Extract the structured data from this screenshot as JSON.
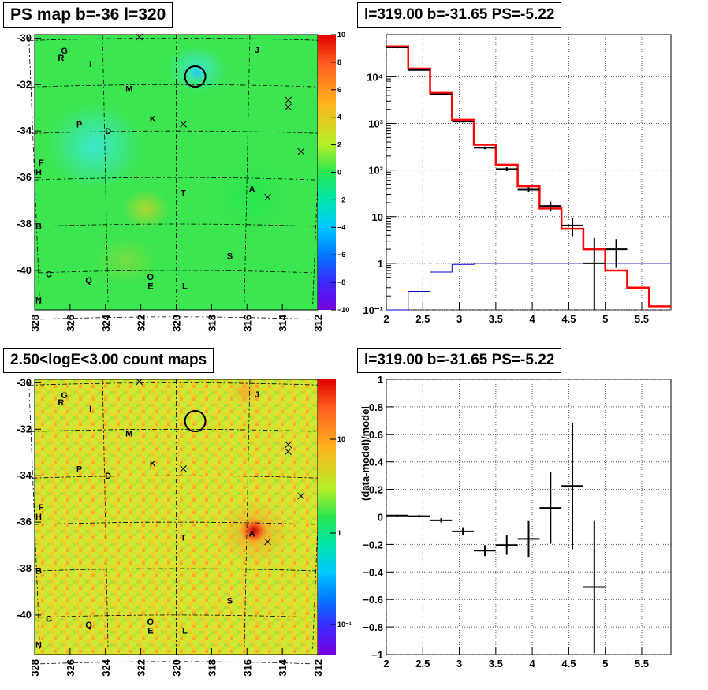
{
  "titles": {
    "map_top": "PS map b=-36 l=320",
    "spec_top": "l=319.00 b=-31.65 PS=-5.22",
    "map_bottom": "2.50<logE<3.00 count maps",
    "spec_bottom": "l=319.00 b=-31.65 PS=-5.22"
  },
  "maps": {
    "xticks": [
      "328",
      "326",
      "324",
      "322",
      "320",
      "318",
      "316",
      "314",
      "312"
    ],
    "yticks": [
      "-30",
      "-32",
      "-34",
      "-36",
      "-38",
      "-40"
    ],
    "labels": [
      {
        "t": "G",
        "l": 326.1,
        "b": -30.6
      },
      {
        "t": "R",
        "l": 326.3,
        "b": -30.9
      },
      {
        "t": "I",
        "l": 324.7,
        "b": -31.2
      },
      {
        "t": "J",
        "l": 315.6,
        "b": -30.6
      },
      {
        "t": "M",
        "l": 322.6,
        "b": -32.3
      },
      {
        "t": "K",
        "l": 321.3,
        "b": -33.6
      },
      {
        "t": "P",
        "l": 325.4,
        "b": -33.8
      },
      {
        "t": "D",
        "l": 323.8,
        "b": -34.1
      },
      {
        "t": "F",
        "l": 327.6,
        "b": -35.4
      },
      {
        "t": "H",
        "l": 328.0,
        "b": -35.8
      },
      {
        "t": "T",
        "l": 319.6,
        "b": -36.8
      },
      {
        "t": "A",
        "l": 315.7,
        "b": -36.6
      },
      {
        "t": "B",
        "l": 328.5,
        "b": -38.1
      },
      {
        "t": "S",
        "l": 316.9,
        "b": -39.5
      },
      {
        "t": "C",
        "l": 327.4,
        "b": -40.2
      },
      {
        "t": "Q",
        "l": 325.1,
        "b": -40.5
      },
      {
        "t": "O",
        "l": 321.5,
        "b": -40.4
      },
      {
        "t": "E",
        "l": 321.5,
        "b": -40.8
      },
      {
        "t": "L",
        "l": 319.5,
        "b": -40.8
      },
      {
        "t": "N",
        "l": 328.6,
        "b": -41.3
      }
    ],
    "crosses": [
      {
        "l": 322.0,
        "b": -29.9
      },
      {
        "l": 319.6,
        "b": -33.7
      },
      {
        "l": 313.8,
        "b": -32.6
      },
      {
        "l": 313.8,
        "b": -32.9
      },
      {
        "l": 313.0,
        "b": -34.8
      },
      {
        "l": 314.8,
        "b": -36.8
      }
    ],
    "circle": {
      "l": 319.0,
      "b": -31.65
    },
    "ps_colorbar_ticks": [
      "10",
      "8",
      "6",
      "4",
      "2",
      "0",
      "−2",
      "−4",
      "−6",
      "−8",
      "−10"
    ],
    "count_colorbar_ticks": [
      "10",
      "1",
      "10⁻¹"
    ]
  },
  "chart_data": [
    {
      "type": "line",
      "title": "l=319.00 b=-31.65 PS=-5.22",
      "xlabel": "",
      "ylabel": "",
      "xlim": [
        2,
        5.9
      ],
      "ylim": [
        0.1,
        80000
      ],
      "yscale": "log",
      "grid": true,
      "xticks": [
        "2",
        "2.5",
        "3",
        "3.5",
        "4",
        "4.5",
        "5",
        "5.5"
      ],
      "yticks": [
        "10⁻¹",
        "1",
        "10",
        "10²",
        "10³",
        "10⁴"
      ],
      "bin_edges": [
        2.0,
        2.3,
        2.6,
        2.9,
        3.2,
        3.5,
        3.8,
        4.1,
        4.4,
        4.7,
        5.0,
        5.3,
        5.6,
        5.9
      ],
      "series": [
        {
          "color": "#ff0000",
          "values": [
            45000,
            15000,
            4500,
            1200,
            350,
            130,
            45,
            15,
            5.5,
            2.0,
            0.7,
            0.3,
            0.12
          ]
        },
        {
          "color": "#000000",
          "values": [
            43000,
            14000,
            4200,
            1100,
            300,
            105,
            38,
            17,
            6.5,
            1.0,
            2.0,
            null,
            null
          ],
          "err_high": [
            45000,
            14500,
            4400,
            1150,
            320,
            115,
            43,
            21,
            9.5,
            3.5,
            3.3,
            null,
            null
          ],
          "err_low": [
            41000,
            13500,
            4000,
            1050,
            280,
            95,
            33,
            13,
            3.8,
            0.1,
            0.8,
            null,
            null
          ]
        },
        {
          "color": "#0000cc",
          "values": [
            0.1,
            0.25,
            0.65,
            0.95,
            1.0,
            1.0,
            1.0,
            1.0,
            1.0,
            1.0,
            1.0,
            1.0,
            1.0
          ]
        }
      ]
    },
    {
      "type": "scatter",
      "title": "l=319.00 b=-31.65 PS=-5.22",
      "xlabel": "",
      "ylabel": "(data-model)/model",
      "xlim": [
        2,
        5.9
      ],
      "ylim": [
        -1,
        1
      ],
      "grid": true,
      "xticks": [
        "2",
        "2.5",
        "3",
        "3.5",
        "4",
        "4.5",
        "5",
        "5.5"
      ],
      "yticks": [
        "−1",
        "−0.8",
        "−0.6",
        "−0.4",
        "−0.2",
        "0",
        "0.2",
        "0.4",
        "0.6",
        "0.8",
        "1"
      ],
      "x": [
        2.15,
        2.45,
        2.75,
        3.05,
        3.35,
        3.65,
        3.95,
        4.25,
        4.55,
        4.85
      ],
      "y": [
        0.01,
        0.005,
        -0.025,
        -0.105,
        -0.245,
        -0.205,
        -0.16,
        0.065,
        0.225,
        -0.51
      ],
      "err": [
        0.007,
        0.01,
        0.015,
        0.03,
        0.04,
        0.07,
        0.13,
        0.26,
        0.46,
        0.48
      ],
      "xerr": 0.15
    }
  ]
}
